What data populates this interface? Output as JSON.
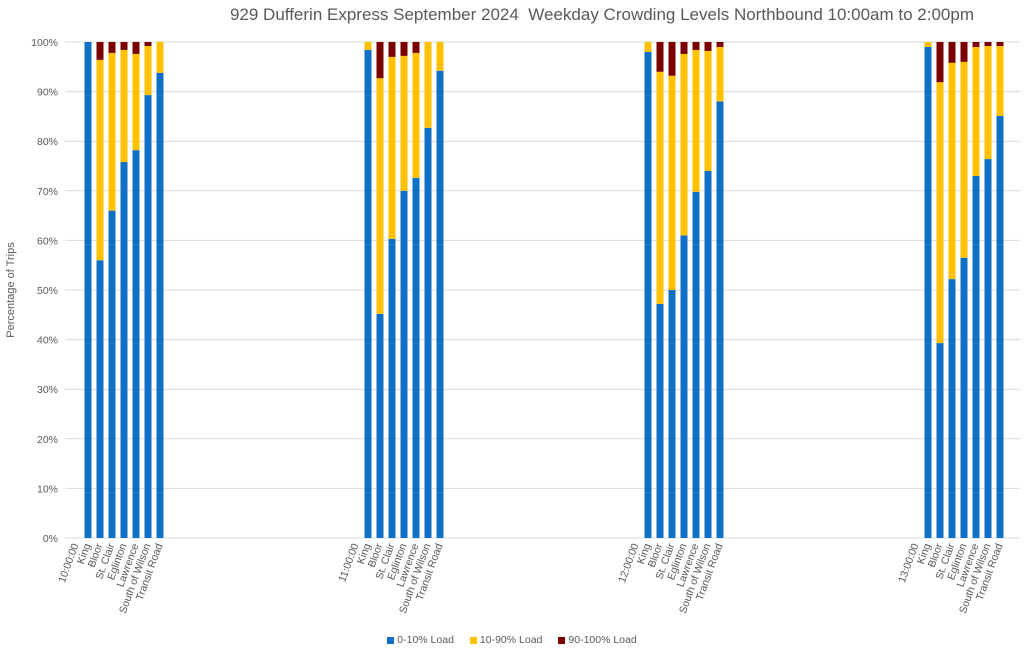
{
  "chart_data": {
    "type": "bar",
    "stacked": true,
    "percent_stacked": true,
    "title": "929 Dufferin Express September 2024  Weekday Crowding Levels Northbound 10:00am to 2:00pm",
    "xlabel": "",
    "ylabel": "Percentage of Trips",
    "ylim": [
      0,
      100
    ],
    "y_ticks": [
      "0%",
      "10%",
      "20%",
      "30%",
      "40%",
      "50%",
      "60%",
      "70%",
      "80%",
      "90%",
      "100%"
    ],
    "grid": true,
    "legend_position": "bottom",
    "groups": [
      {
        "label": "10:00:00",
        "categories": [
          "King",
          "Bloor",
          "St. Clair",
          "Eglinton",
          "Lawrence",
          "South of Wilson",
          "Transit Road"
        ]
      },
      {
        "label": "11:00:00",
        "categories": [
          "King",
          "Bloor",
          "St. Clair",
          "Eglinton",
          "Lawrence",
          "South of Wilson",
          "Transit Road"
        ]
      },
      {
        "label": "12:00:00",
        "categories": [
          "King",
          "Bloor",
          "St. Clair",
          "Eglinton",
          "Lawrence",
          "South of Wilson",
          "Transit Road"
        ]
      },
      {
        "label": "13:00:00",
        "categories": [
          "King",
          "Bloor",
          "St. Clair",
          "Eglinton",
          "Lawrence",
          "South of Wilson",
          "Transit Road"
        ]
      }
    ],
    "series": [
      {
        "name": "0-10% Load",
        "color": "#0f6fc6",
        "values": [
          [
            100.0,
            56.0,
            66.0,
            75.8,
            78.2,
            89.3,
            93.8
          ],
          [
            98.4,
            45.2,
            60.3,
            70.0,
            72.6,
            82.7,
            94.2
          ],
          [
            98.0,
            47.2,
            50.0,
            61.0,
            69.8,
            74.0,
            88.0
          ],
          [
            99.0,
            39.3,
            52.2,
            56.5,
            73.0,
            76.4,
            85.1
          ]
        ]
      },
      {
        "name": "10-90% Load",
        "color": "#ffc000",
        "values": [
          [
            0.0,
            40.4,
            31.8,
            22.6,
            19.4,
            9.9,
            6.2
          ],
          [
            1.6,
            47.5,
            36.7,
            27.2,
            25.2,
            17.3,
            5.8
          ],
          [
            2.0,
            46.8,
            43.2,
            36.6,
            28.6,
            24.2,
            11.0
          ],
          [
            1.0,
            52.6,
            43.6,
            39.5,
            26.0,
            22.8,
            14.1
          ]
        ]
      },
      {
        "name": "90-100% Load",
        "color": "#7b0000",
        "values": [
          [
            0.0,
            3.6,
            2.2,
            1.6,
            2.4,
            0.8,
            0.0
          ],
          [
            0.0,
            7.3,
            3.0,
            2.8,
            2.2,
            0.0,
            0.0
          ],
          [
            0.0,
            6.0,
            6.8,
            2.4,
            1.6,
            1.8,
            1.0
          ],
          [
            0.0,
            8.1,
            4.2,
            4.0,
            1.0,
            0.8,
            0.8
          ]
        ]
      }
    ]
  }
}
